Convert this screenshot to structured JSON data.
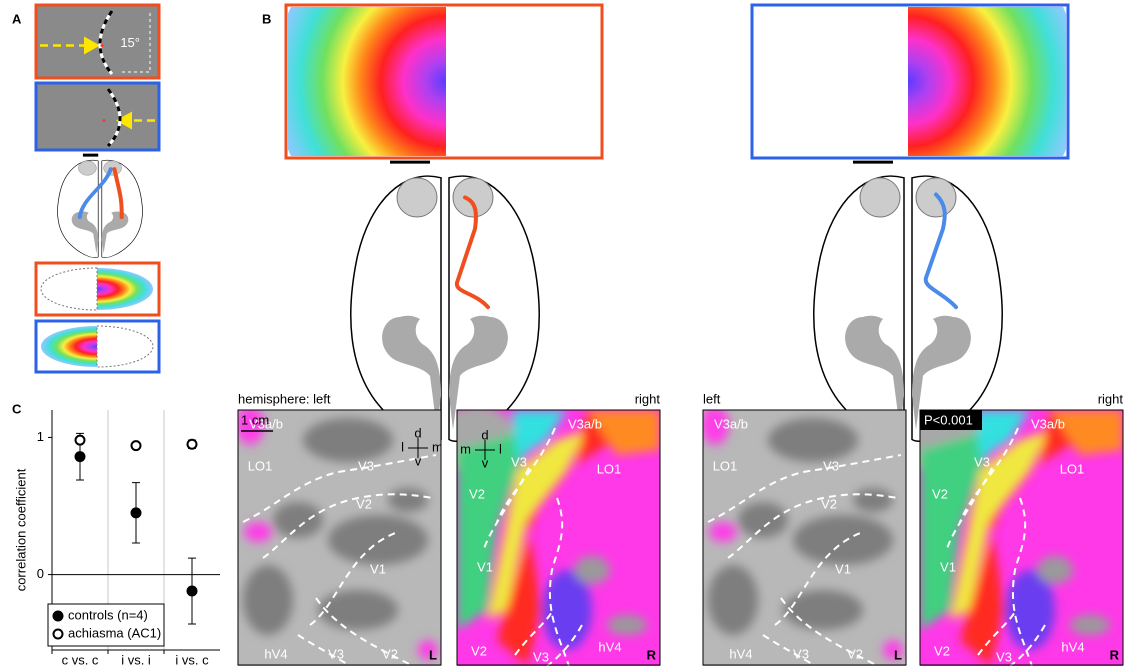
{
  "panel_labels": [
    "A",
    "B",
    "C"
  ],
  "panel_a": {
    "angle": "15°"
  },
  "maps": [
    {
      "title": "hemisphere: left",
      "corner": "L",
      "scale": "1 cm",
      "orient": [
        "d",
        "l",
        "m",
        "v"
      ],
      "areas": [
        "V3a/b",
        "LO1",
        "V3",
        "V2",
        "V1",
        "hV4",
        "V3",
        "V2"
      ]
    },
    {
      "title": "right",
      "corner": "R",
      "orient": [
        "d",
        "m",
        "l",
        "v"
      ],
      "areas": [
        "V3a/b",
        "LO1",
        "V3",
        "V2",
        "V1",
        "V2",
        "V3",
        "hV4"
      ]
    },
    {
      "title": "left",
      "corner": "L",
      "areas": [
        "V3a/b",
        "LO1",
        "V3",
        "V2",
        "V1",
        "hV4",
        "V3",
        "V2"
      ]
    },
    {
      "title": "right",
      "corner": "R",
      "threshold": "P<0.001",
      "areas": [
        "V3a/b",
        "LO1",
        "V3",
        "V2",
        "V1",
        "V2",
        "V3",
        "hV4"
      ]
    }
  ],
  "chart_data": {
    "type": "scatter",
    "y_label": "correlation coefficient",
    "categories": [
      "c vs. c",
      "i vs. i",
      "i vs. c"
    ],
    "series": [
      {
        "name": "controls (n=4)",
        "marker": "filled",
        "color": "#000000",
        "values": [
          0.86,
          0.45,
          -0.12
        ],
        "errors": [
          0.17,
          0.22,
          0.24
        ]
      },
      {
        "name": "achiasma (AC1)",
        "marker": "open",
        "color": "#000000",
        "values": [
          0.98,
          0.94,
          0.95
        ],
        "errors": [
          0,
          0,
          0.03
        ]
      }
    ],
    "ylim": [
      -0.55,
      1.2
    ],
    "yticks": [
      0,
      1
    ],
    "legend": "lower left"
  }
}
